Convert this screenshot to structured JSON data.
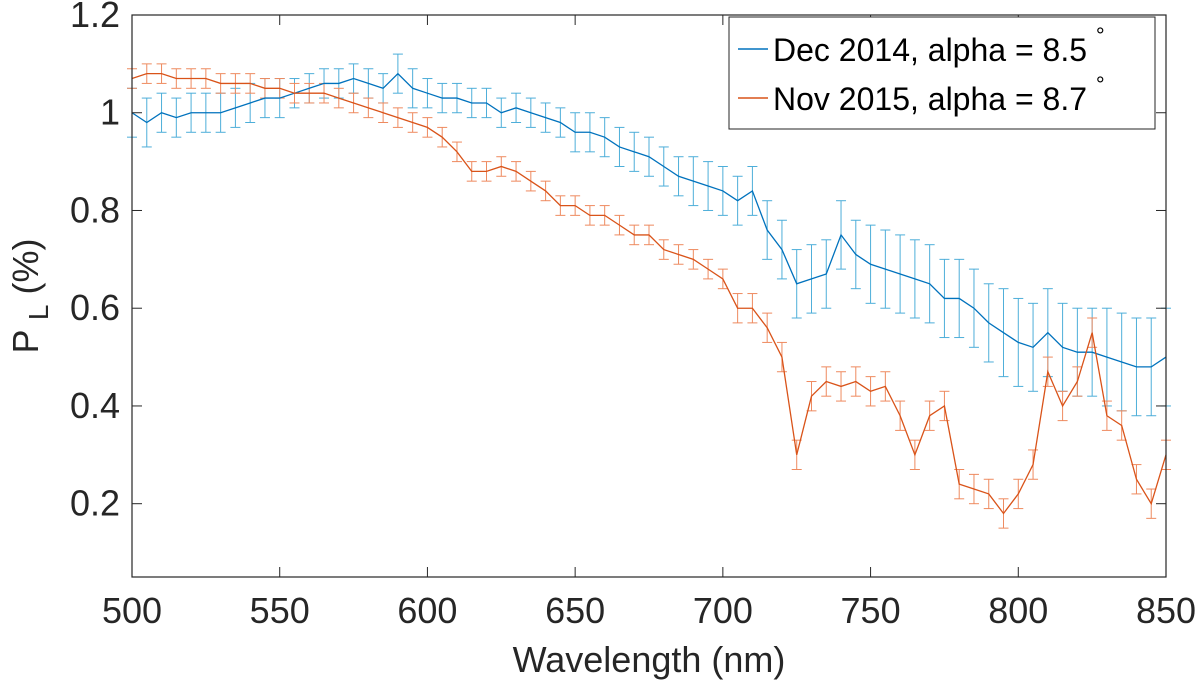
{
  "chart_data": {
    "type": "line",
    "xlabel": "Wavelength (nm)",
    "ylabel": {
      "main": "P",
      "sub": "L",
      "unit": "(%)"
    },
    "xlim": [
      500,
      850
    ],
    "ylim": [
      0.05,
      1.2
    ],
    "xticks": [
      500,
      550,
      600,
      650,
      700,
      750,
      800,
      850
    ],
    "xtick_labels": [
      "500",
      "550",
      "600",
      "650",
      "700",
      "750",
      "800",
      "850"
    ],
    "yticks": [
      0.2,
      0.4,
      0.6,
      0.8,
      1.0,
      1.2
    ],
    "ytick_labels": [
      "0.2",
      "0.4",
      "0.6",
      "0.8",
      "1",
      "1.2"
    ],
    "grid": false,
    "legend_position": "top-right",
    "series": [
      {
        "name": "Dec 2014, alpha = 8.5",
        "degree_symbol": "°",
        "color": "#0072BD",
        "error_color": "#4DAED9",
        "x": [
          500,
          505,
          510,
          515,
          520,
          525,
          530,
          535,
          540,
          545,
          550,
          555,
          560,
          565,
          570,
          575,
          580,
          585,
          590,
          595,
          600,
          605,
          610,
          615,
          620,
          625,
          630,
          635,
          640,
          645,
          650,
          655,
          660,
          665,
          670,
          675,
          680,
          685,
          690,
          695,
          700,
          705,
          710,
          715,
          720,
          725,
          730,
          735,
          740,
          745,
          750,
          755,
          760,
          765,
          770,
          775,
          780,
          785,
          790,
          795,
          800,
          805,
          810,
          815,
          820,
          825,
          830,
          835,
          840,
          845,
          850
        ],
        "y": [
          1.0,
          0.98,
          1.0,
          0.99,
          1.0,
          1.0,
          1.0,
          1.01,
          1.02,
          1.03,
          1.03,
          1.04,
          1.05,
          1.06,
          1.06,
          1.07,
          1.06,
          1.05,
          1.08,
          1.05,
          1.04,
          1.03,
          1.03,
          1.02,
          1.02,
          1.0,
          1.01,
          1.0,
          0.99,
          0.98,
          0.96,
          0.96,
          0.95,
          0.93,
          0.92,
          0.91,
          0.89,
          0.87,
          0.86,
          0.85,
          0.84,
          0.82,
          0.84,
          0.76,
          0.72,
          0.65,
          0.66,
          0.67,
          0.75,
          0.71,
          0.69,
          0.68,
          0.67,
          0.66,
          0.65,
          0.62,
          0.62,
          0.6,
          0.57,
          0.55,
          0.53,
          0.52,
          0.55,
          0.52,
          0.51,
          0.51,
          0.5,
          0.49,
          0.48,
          0.48,
          0.5
        ],
        "err": [
          0.05,
          0.05,
          0.04,
          0.04,
          0.04,
          0.04,
          0.04,
          0.04,
          0.04,
          0.04,
          0.04,
          0.03,
          0.03,
          0.03,
          0.03,
          0.03,
          0.03,
          0.03,
          0.04,
          0.04,
          0.03,
          0.03,
          0.03,
          0.03,
          0.03,
          0.03,
          0.03,
          0.03,
          0.03,
          0.03,
          0.04,
          0.04,
          0.04,
          0.04,
          0.04,
          0.04,
          0.04,
          0.04,
          0.05,
          0.05,
          0.05,
          0.05,
          0.05,
          0.06,
          0.06,
          0.07,
          0.07,
          0.07,
          0.07,
          0.07,
          0.08,
          0.08,
          0.08,
          0.08,
          0.08,
          0.08,
          0.08,
          0.08,
          0.08,
          0.09,
          0.09,
          0.09,
          0.09,
          0.09,
          0.09,
          0.09,
          0.1,
          0.1,
          0.1,
          0.1,
          0.1
        ]
      },
      {
        "name": "Nov 2015, alpha = 8.7",
        "degree_symbol": "°",
        "color": "#D95319",
        "error_color": "#EE8A5F",
        "x": [
          500,
          505,
          510,
          515,
          520,
          525,
          530,
          535,
          540,
          545,
          550,
          555,
          560,
          565,
          570,
          575,
          580,
          585,
          590,
          595,
          600,
          605,
          610,
          615,
          620,
          625,
          630,
          635,
          640,
          645,
          650,
          655,
          660,
          665,
          670,
          675,
          680,
          685,
          690,
          695,
          700,
          705,
          710,
          715,
          720,
          725,
          730,
          735,
          740,
          745,
          750,
          755,
          760,
          765,
          770,
          775,
          780,
          785,
          790,
          795,
          800,
          805,
          810,
          815,
          820,
          825,
          830,
          835,
          840,
          845,
          850
        ],
        "y": [
          1.07,
          1.08,
          1.08,
          1.07,
          1.07,
          1.07,
          1.06,
          1.06,
          1.06,
          1.05,
          1.05,
          1.04,
          1.04,
          1.04,
          1.03,
          1.02,
          1.01,
          1.0,
          0.99,
          0.98,
          0.97,
          0.95,
          0.92,
          0.88,
          0.88,
          0.89,
          0.88,
          0.86,
          0.84,
          0.81,
          0.81,
          0.79,
          0.79,
          0.77,
          0.75,
          0.75,
          0.72,
          0.71,
          0.7,
          0.68,
          0.66,
          0.6,
          0.6,
          0.56,
          0.5,
          0.3,
          0.42,
          0.45,
          0.44,
          0.45,
          0.43,
          0.44,
          0.38,
          0.3,
          0.38,
          0.4,
          0.24,
          0.23,
          0.22,
          0.18,
          0.22,
          0.28,
          0.47,
          0.4,
          0.45,
          0.55,
          0.38,
          0.36,
          0.25,
          0.2,
          0.3
        ],
        "err": [
          0.02,
          0.02,
          0.02,
          0.02,
          0.02,
          0.02,
          0.02,
          0.02,
          0.02,
          0.02,
          0.02,
          0.02,
          0.02,
          0.02,
          0.02,
          0.02,
          0.02,
          0.02,
          0.02,
          0.02,
          0.02,
          0.02,
          0.02,
          0.02,
          0.02,
          0.02,
          0.02,
          0.02,
          0.02,
          0.02,
          0.02,
          0.02,
          0.02,
          0.02,
          0.02,
          0.02,
          0.02,
          0.02,
          0.02,
          0.02,
          0.02,
          0.03,
          0.03,
          0.03,
          0.03,
          0.03,
          0.03,
          0.03,
          0.03,
          0.03,
          0.03,
          0.03,
          0.03,
          0.03,
          0.03,
          0.03,
          0.03,
          0.03,
          0.03,
          0.03,
          0.03,
          0.03,
          0.03,
          0.03,
          0.03,
          0.03,
          0.03,
          0.03,
          0.03,
          0.03,
          0.03
        ]
      }
    ]
  }
}
